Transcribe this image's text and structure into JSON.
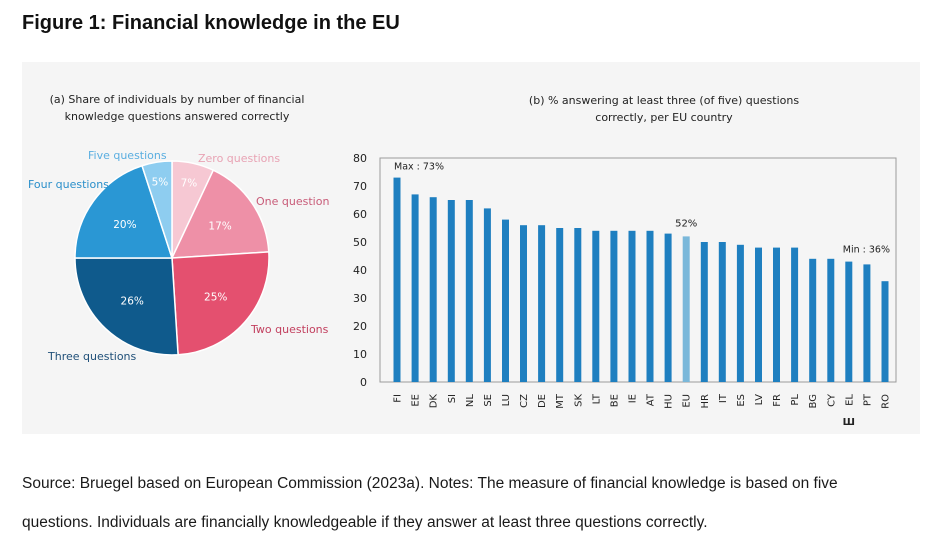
{
  "figure_title": "Figure 1: Financial knowledge in the EU",
  "source_line1": "Source: Bruegel based on European Commission (2023a). Notes: The measure of financial knowledge is based on five",
  "source_line2": "questions. Individuals are financially knowledgeable if they answer at least three questions correctly.",
  "colors": {
    "bar": "#1e7fc0",
    "bar_eu": "#7ab8da",
    "pie_zero": "#f6c8d3",
    "pie_one": "#ee90a7",
    "pie_two": "#e4506f",
    "pie_three": "#0f5a8c",
    "pie_four": "#2a97d4",
    "pie_five": "#8ecdf0",
    "panel_bg": "#f5f5f5"
  },
  "chart_data": [
    {
      "type": "pie",
      "title": "(a) Share of individuals by number of financial knowledge questions answered correctly",
      "title_lines": [
        "(a) Share of individuals by number of financial",
        "knowledge questions answered correctly"
      ],
      "slices": [
        {
          "label": "Zero questions",
          "value": 7,
          "value_label": "7%"
        },
        {
          "label": "One question",
          "value": 17,
          "value_label": "17%"
        },
        {
          "label": "Two questions",
          "value": 25,
          "value_label": "25%"
        },
        {
          "label": "Three questions",
          "value": 26,
          "value_label": "26%"
        },
        {
          "label": "Four questions",
          "value": 20,
          "value_label": "20%"
        },
        {
          "label": "Five questions",
          "value": 5,
          "value_label": "5%"
        }
      ]
    },
    {
      "type": "bar",
      "title": "(b) % answering at least three (of five) questions correctly, per EU country",
      "title_lines": [
        "(b) % answering at least three (of five) questions",
        "correctly, per EU country"
      ],
      "categories": [
        "FI",
        "EE",
        "DK",
        "SI",
        "NL",
        "SE",
        "LU",
        "CZ",
        "DE",
        "MT",
        "SK",
        "LT",
        "BE",
        "IE",
        "AT",
        "HU",
        "EU",
        "HR",
        "IT",
        "ES",
        "LV",
        "FR",
        "PL",
        "BG",
        "CY",
        "EL",
        "PT",
        "RO"
      ],
      "values": [
        73,
        67,
        66,
        65,
        65,
        62,
        58,
        56,
        56,
        55,
        55,
        54,
        54,
        54,
        54,
        53,
        52,
        50,
        50,
        49,
        48,
        48,
        48,
        44,
        44,
        43,
        42,
        36
      ],
      "ylim": [
        0,
        80
      ],
      "yticks": [
        0,
        10,
        20,
        30,
        40,
        50,
        60,
        70,
        80
      ],
      "grid": false,
      "annotations": {
        "max": "Max : 73%",
        "eu": "52%",
        "min": "Min : 36%"
      },
      "greek_mark": "Ш"
    }
  ]
}
